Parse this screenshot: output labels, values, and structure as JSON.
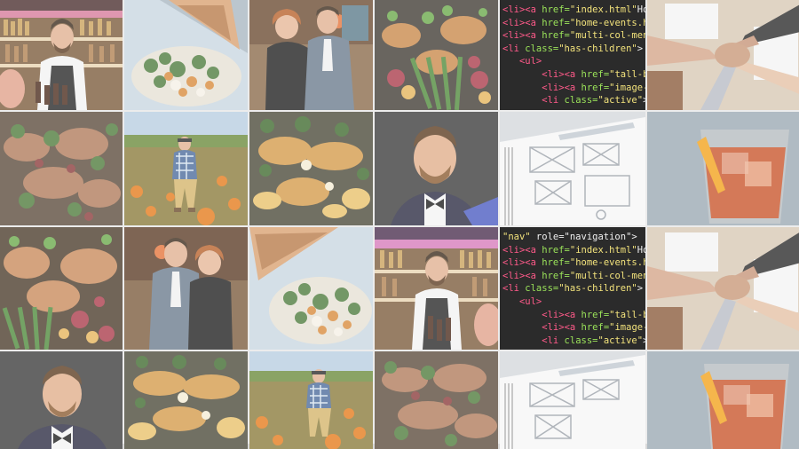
{
  "collage": {
    "code_tile_a": [
      {
        "indent": "",
        "tag1": "<li>",
        "tag2": "<a",
        "attr": " href=",
        "str": "\"index.html\"",
        "rest": "Ho"
      },
      {
        "indent": "",
        "tag1": "<li>",
        "tag2": "<a",
        "attr": " href=",
        "str": "\"home-events.ht",
        "rest": ""
      },
      {
        "indent": "",
        "tag1": "<li>",
        "tag2": "<a",
        "attr": " href=",
        "str": "\"multi-col-menu",
        "rest": ""
      },
      {
        "indent": "",
        "tag1": "<li",
        "tag2": "",
        "attr": " class=",
        "str": "\"has-children\"",
        "rest": ">"
      },
      {
        "indent": "   ",
        "tag1": "<ul>",
        "tag2": "",
        "attr": "",
        "str": "",
        "rest": ""
      },
      {
        "indent": "       ",
        "tag1": "<li>",
        "tag2": "<a",
        "attr": " href=",
        "str": "\"tall-b",
        "rest": ""
      },
      {
        "indent": "       ",
        "tag1": "<li>",
        "tag2": "<a",
        "attr": " href=",
        "str": "\"image-",
        "rest": ""
      },
      {
        "indent": "       ",
        "tag1": "<li",
        "tag2": "",
        "attr": " class=",
        "str": "\"active\"",
        "rest": ">"
      }
    ],
    "code_tile_b": [
      {
        "indent": "",
        "tag1": "",
        "tag2": "",
        "attr": "",
        "str": "\"nav\"",
        "rest": " role=\"navigation\">"
      },
      {
        "indent": "",
        "tag1": "<li>",
        "tag2": "<a",
        "attr": " href=",
        "str": "\"index.html\"",
        "rest": "Ho"
      },
      {
        "indent": "",
        "tag1": "<li>",
        "tag2": "<a",
        "attr": " href=",
        "str": "\"home-events.ht",
        "rest": ""
      },
      {
        "indent": "",
        "tag1": "<li>",
        "tag2": "<a",
        "attr": " href=",
        "str": "\"multi-col-menu",
        "rest": ""
      },
      {
        "indent": "",
        "tag1": "<li",
        "tag2": "",
        "attr": " class=",
        "str": "\"has-children\"",
        "rest": ">"
      },
      {
        "indent": "   ",
        "tag1": "<ul>",
        "tag2": "",
        "attr": "",
        "str": "",
        "rest": ""
      },
      {
        "indent": "       ",
        "tag1": "<li>",
        "tag2": "<a",
        "attr": " href=",
        "str": "\"tall-b",
        "rest": ""
      },
      {
        "indent": "       ",
        "tag1": "<li>",
        "tag2": "<a",
        "attr": " href=",
        "str": "\"image-",
        "rest": ""
      },
      {
        "indent": "       ",
        "tag1": "<li",
        "tag2": "",
        "attr": " class=",
        "str": "\"active\"",
        "rest": ">"
      }
    ]
  }
}
